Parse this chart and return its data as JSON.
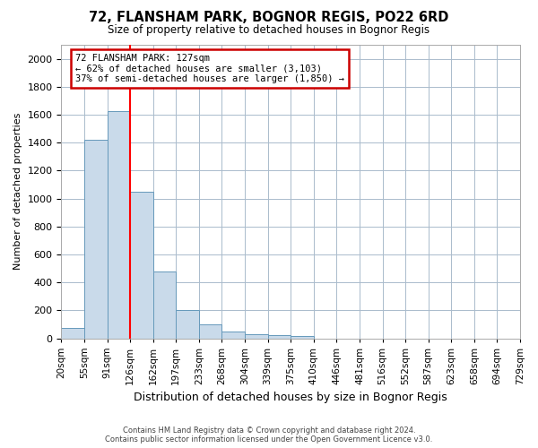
{
  "title": "72, FLANSHAM PARK, BOGNOR REGIS, PO22 6RD",
  "subtitle": "Size of property relative to detached houses in Bognor Regis",
  "xlabel": "Distribution of detached houses by size in Bognor Regis",
  "ylabel": "Number of detached properties",
  "footer_line1": "Contains HM Land Registry data © Crown copyright and database right 2024.",
  "footer_line2": "Contains public sector information licensed under the Open Government Licence v3.0.",
  "tick_labels": [
    "20sqm",
    "55sqm",
    "91sqm",
    "126sqm",
    "162sqm",
    "197sqm",
    "233sqm",
    "268sqm",
    "304sqm",
    "339sqm",
    "375sqm",
    "410sqm",
    "446sqm",
    "481sqm",
    "516sqm",
    "552sqm",
    "587sqm",
    "623sqm",
    "658sqm",
    "694sqm",
    "729sqm"
  ],
  "bar_values": [
    75,
    1420,
    1625,
    1050,
    480,
    200,
    100,
    45,
    30,
    22,
    15,
    0,
    0,
    0,
    0,
    0,
    0,
    0,
    0,
    0
  ],
  "bar_color": "#c9daea",
  "bar_edge_color": "#6699bb",
  "red_line_bin": 2,
  "property_label": "72 FLANSHAM PARK: 127sqm",
  "annotation_line1": "← 62% of detached houses are smaller (3,103)",
  "annotation_line2": "37% of semi-detached houses are larger (1,850) →",
  "annotation_box_color": "#ffffff",
  "annotation_box_edge_color": "#cc0000",
  "ylim": [
    0,
    2100
  ],
  "yticks": [
    0,
    200,
    400,
    600,
    800,
    1000,
    1200,
    1400,
    1600,
    1800,
    2000
  ],
  "grid_color": "#aabbcc",
  "background_color": "#ffffff"
}
